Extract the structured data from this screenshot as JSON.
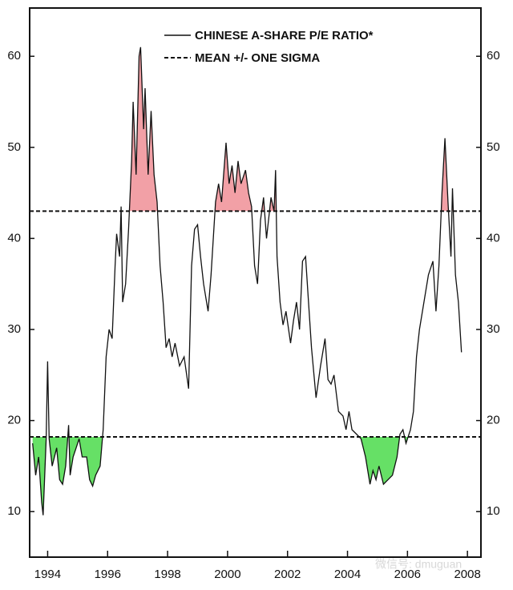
{
  "chart_data": {
    "type": "line",
    "series": [
      {
        "name": "CHINESE A-SHARE P/E RATIO*",
        "color": "#111111",
        "x": [
          1993.5,
          1993.6,
          1993.7,
          1993.8,
          1993.85,
          1993.95,
          1994.0,
          1994.05,
          1994.15,
          1994.3,
          1994.4,
          1994.5,
          1994.6,
          1994.7,
          1994.75,
          1994.85,
          1994.95,
          1995.05,
          1995.15,
          1995.3,
          1995.4,
          1995.5,
          1995.6,
          1995.75,
          1995.85,
          1995.95,
          1996.05,
          1996.15,
          1996.25,
          1996.3,
          1996.4,
          1996.45,
          1996.5,
          1996.6,
          1996.7,
          1996.8,
          1996.85,
          1996.95,
          1997.05,
          1997.1,
          1997.2,
          1997.25,
          1997.35,
          1997.45,
          1997.55,
          1997.65,
          1997.75,
          1997.85,
          1997.95,
          1998.05,
          1998.15,
          1998.25,
          1998.4,
          1998.55,
          1998.7,
          1998.8,
          1998.9,
          1999.0,
          1999.1,
          1999.2,
          1999.35,
          1999.45,
          1999.6,
          1999.7,
          1999.8,
          1999.95,
          2000.05,
          2000.15,
          2000.25,
          2000.35,
          2000.45,
          2000.6,
          2000.7,
          2000.8,
          2000.9,
          2001.0,
          2001.1,
          2001.2,
          2001.3,
          2001.45,
          2001.55,
          2001.6,
          2001.65,
          2001.75,
          2001.85,
          2001.95,
          2002.1,
          2002.2,
          2002.3,
          2002.4,
          2002.5,
          2002.6,
          2002.7,
          2002.8,
          2002.95,
          2003.1,
          2003.25,
          2003.35,
          2003.45,
          2003.55,
          2003.7,
          2003.85,
          2003.95,
          2004.05,
          2004.15,
          2004.3,
          2004.45,
          2004.6,
          2004.75,
          2004.85,
          2004.95,
          2005.05,
          2005.2,
          2005.35,
          2005.5,
          2005.65,
          2005.75,
          2005.85,
          2005.95,
          2006.1,
          2006.2,
          2006.3,
          2006.4,
          2006.55,
          2006.7,
          2006.85,
          2006.95,
          2007.05,
          2007.15,
          2007.25,
          2007.35,
          2007.45,
          2007.5,
          2007.6,
          2007.7,
          2007.8
        ],
        "values": [
          17.5,
          14,
          16,
          11,
          9.6,
          18,
          26.5,
          18,
          15,
          17,
          13.5,
          13,
          15,
          19.5,
          14,
          16,
          17,
          18,
          16,
          16,
          13.5,
          12.8,
          14,
          15,
          19,
          27,
          30,
          29,
          37,
          40.5,
          38,
          43.5,
          33,
          35,
          41,
          48.5,
          55,
          47,
          60,
          61,
          52,
          56.5,
          47,
          54,
          47,
          44,
          37,
          33,
          28,
          29,
          27,
          28.5,
          26,
          27,
          23.5,
          37,
          41,
          41.5,
          38,
          35,
          32,
          36,
          44,
          46,
          44,
          50.5,
          46,
          48,
          45,
          48.5,
          46,
          47.5,
          45,
          43.5,
          37,
          35,
          42,
          44.5,
          40,
          44.5,
          43,
          47.5,
          38,
          33,
          30.5,
          32,
          28.5,
          31,
          33,
          30,
          37.5,
          38,
          33,
          28,
          22.5,
          26,
          29,
          24.5,
          24,
          25,
          21,
          20.5,
          19,
          21,
          19,
          18.5,
          18,
          16,
          13,
          14.5,
          13.5,
          15,
          13,
          13.5,
          14,
          16,
          18.5,
          19,
          17.5,
          19,
          21,
          27,
          30,
          33,
          36,
          37.5,
          32,
          37,
          45,
          51,
          44,
          38,
          45.5,
          36,
          33,
          27.5
        ]
      }
    ],
    "bands": {
      "name": "MEAN +/- ONE SIGMA",
      "color": "#111111",
      "values": [
        18.2,
        43
      ]
    },
    "fill_above_color": "#f2a0a6",
    "fill_below_color": "#66e066",
    "xlim": [
      1993.4,
      2008.45
    ],
    "xticks": [
      1994,
      1996,
      1998,
      2000,
      2002,
      2004,
      2006,
      2008
    ],
    "ylim": [
      5,
      65.3
    ],
    "yticks": [
      10,
      20,
      30,
      40,
      50,
      60
    ],
    "watermark": "微信号: dmuguan"
  }
}
